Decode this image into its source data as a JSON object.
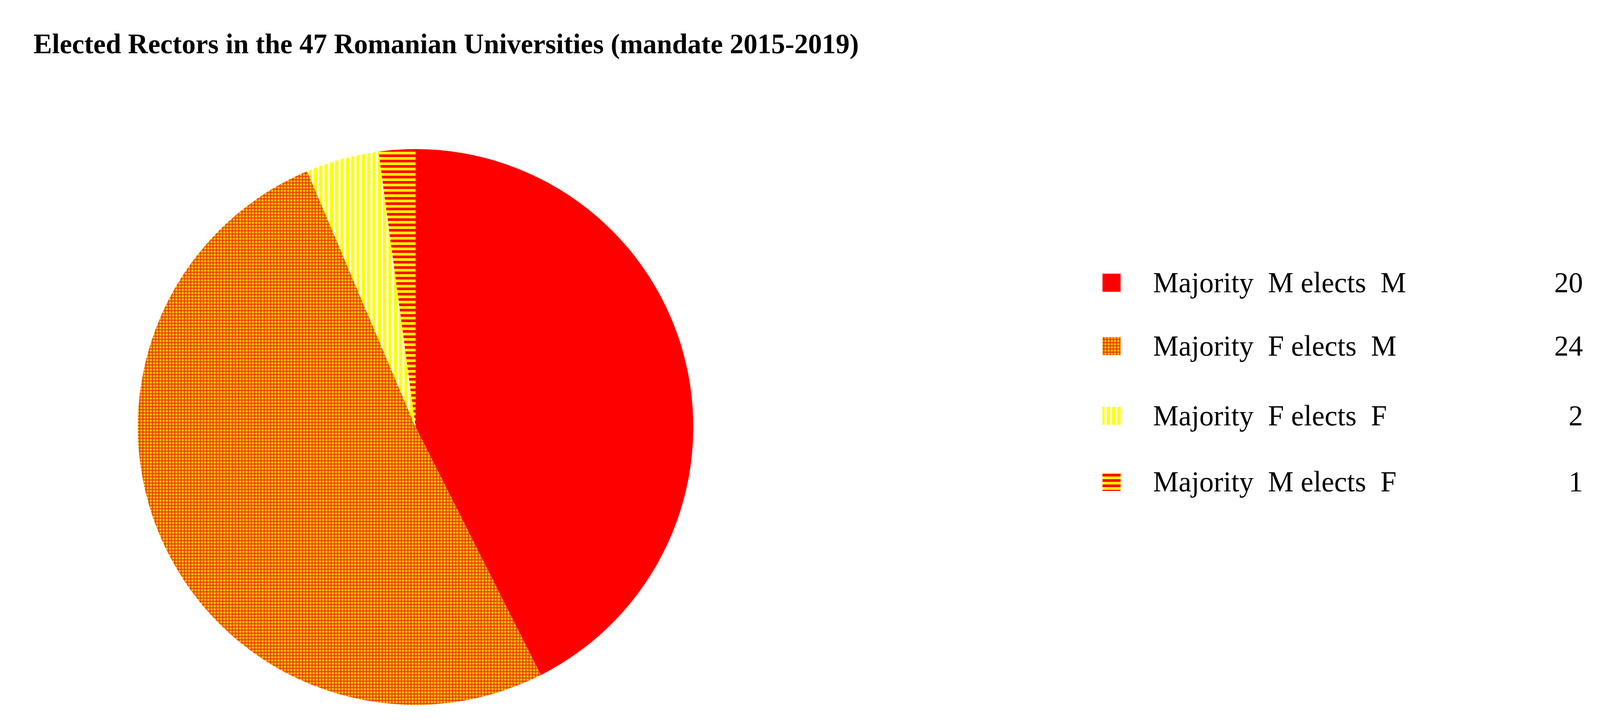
{
  "chart_data": {
    "type": "pie",
    "title": "Elected Rectors in the 47 Romanian Universities (mandate 2015-2019)",
    "categories": [
      "Majority  M elects  M",
      "Majority  F elects  M",
      "Majority  F elects  F",
      "Majority  M elects  F"
    ],
    "values": [
      20,
      24,
      2,
      1
    ],
    "colors": [
      "#ff0000",
      "#f06a00",
      "#ffff00",
      "#ff0000"
    ],
    "legend": "right"
  }
}
